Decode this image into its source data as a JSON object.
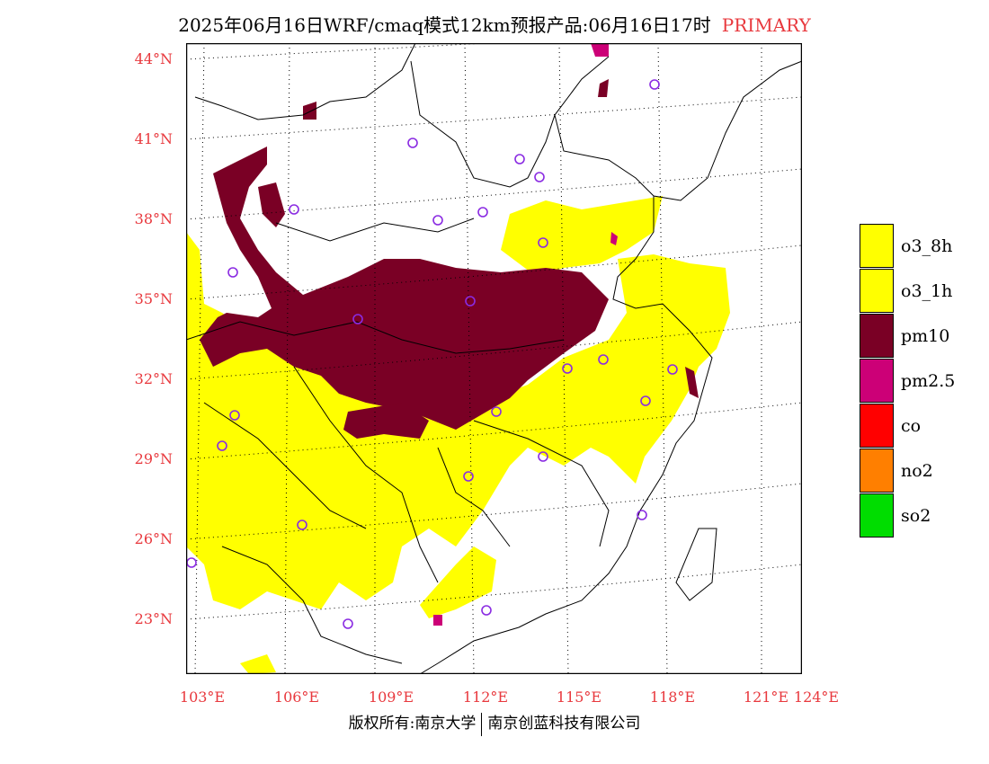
{
  "title": {
    "main": "2025年06月16日WRF/cmaq模式12km预报产品:06月16日17时",
    "tag": "PRIMARY",
    "tag_color": "#e8383d"
  },
  "map": {
    "lat_labels": [
      "44°N",
      "41°N",
      "38°N",
      "35°N",
      "32°N",
      "29°N",
      "26°N",
      "23°N"
    ],
    "lon_labels": [
      "103°E",
      "106°E",
      "109°E",
      "112°E",
      "115°E",
      "118°E",
      "121°E",
      "124°E"
    ],
    "label_color": "#e8383d",
    "station_marker_color": "#8a2be2"
  },
  "legend": {
    "items": [
      {
        "label": "o3_8h",
        "color": "#ffff00"
      },
      {
        "label": "o3_1h",
        "color": "#ffff00"
      },
      {
        "label": "pm10",
        "color": "#7a0025"
      },
      {
        "label": "pm2.5",
        "color": "#cc0077"
      },
      {
        "label": "co",
        "color": "#ff0000"
      },
      {
        "label": "no2",
        "color": "#ff7f00"
      },
      {
        "label": "so2",
        "color": "#00dd00"
      }
    ]
  },
  "footer": {
    "left": "版权所有:南京大学",
    "right": "南京创蓝科技有限公司"
  }
}
